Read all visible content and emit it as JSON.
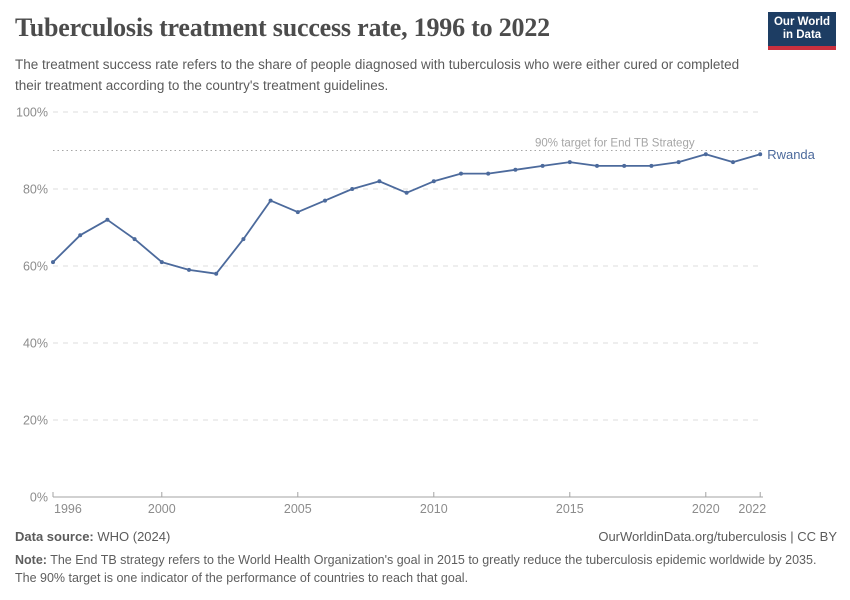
{
  "header": {
    "title": "Tuberculosis treatment success rate, 1996 to 2022",
    "subtitle": "The treatment success rate refers to the share of people diagnosed with tuberculosis who were either cured or completed their treatment according to the country's treatment guidelines.",
    "logo": {
      "line1": "Our World",
      "line2": "in Data",
      "bg_color": "#1d3d63",
      "accent_color": "#c9303e"
    }
  },
  "chart_data": {
    "type": "line",
    "title": "Tuberculosis treatment success rate, 1996 to 2022",
    "xlabel": "",
    "ylabel": "",
    "x": [
      1996,
      1997,
      1998,
      1999,
      2000,
      2001,
      2002,
      2003,
      2004,
      2005,
      2006,
      2007,
      2008,
      2009,
      2010,
      2011,
      2012,
      2013,
      2014,
      2015,
      2016,
      2017,
      2018,
      2019,
      2020,
      2021,
      2022
    ],
    "series": [
      {
        "name": "Rwanda",
        "color": "#4C6A9C",
        "values": [
          61,
          68,
          72,
          67,
          61,
          59,
          58,
          67,
          77,
          74,
          77,
          80,
          82,
          79,
          82,
          84,
          84,
          85,
          86,
          87,
          86,
          86,
          86,
          87,
          89,
          87,
          89
        ]
      }
    ],
    "ylim": [
      0,
      100
    ],
    "yticks": [
      0,
      20,
      40,
      60,
      80,
      100
    ],
    "ytick_suffix": "%",
    "xticks": [
      1996,
      2000,
      2005,
      2010,
      2015,
      2020,
      2022
    ],
    "grid": "dashed horizontal",
    "legend_position": "end-of-line label",
    "annotation": {
      "text": "90% target for End TB Strategy",
      "value": 90
    },
    "end_label": "Rwanda"
  },
  "footer": {
    "datasource_label": "Data source:",
    "datasource_value": " WHO (2024)",
    "citation": "OurWorldinData.org/tuberculosis | CC BY",
    "note_label": "Note:",
    "note_text": " The End TB strategy refers to the World Health Organization's goal in 2015 to greatly reduce the tuberculosis epidemic worldwide by 2035. The 90% target is one indicator of the performance of countries to reach that goal."
  },
  "colors": {
    "series": "#4C6A9C",
    "gridline": "#dedede",
    "axis": "#a3a3a3",
    "axis_label": "#8c8c8c",
    "annotation": "#a6a6a6",
    "title_text": "#4c4c4c",
    "body_text": "#5b5b5b"
  }
}
